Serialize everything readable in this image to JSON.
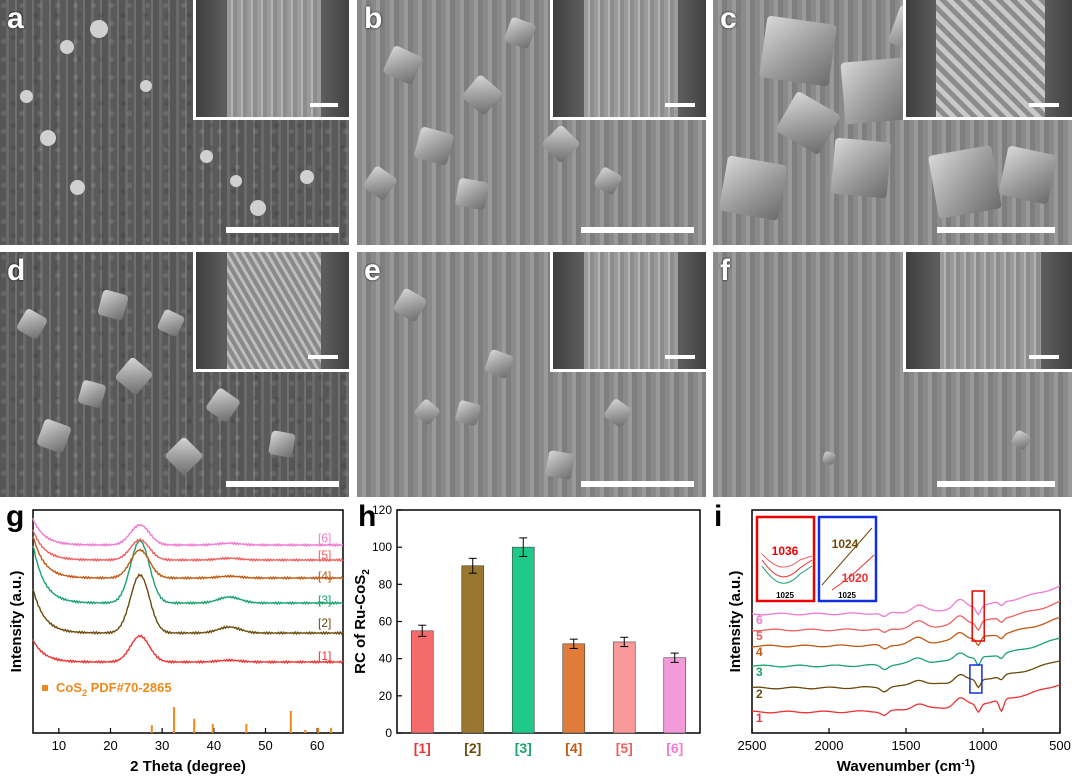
{
  "panels": {
    "a": {
      "label": "a"
    },
    "b": {
      "label": "b"
    },
    "c": {
      "label": "c"
    },
    "d": {
      "label": "d"
    },
    "e": {
      "label": "e"
    },
    "f": {
      "label": "f"
    }
  },
  "plot_labels": {
    "g": "g",
    "h": "h",
    "i": "i"
  },
  "colors": {
    "s1": "#ee3333",
    "s2": "#6b4b0b",
    "s3": "#1aa36e",
    "s4": "#c05a14",
    "s5": "#f06060",
    "s6": "#f07ad0",
    "ref": "#f08a1c",
    "bar1": "#f56a6a",
    "bar2": "#9a7730",
    "bar3": "#1ec98a",
    "bar4": "#e07b3a",
    "bar5": "#f99a9a",
    "bar6": "#f39ad9"
  },
  "chart_data": [
    {
      "type": "line",
      "panel": "g",
      "xlabel": "2 Theta (degree)",
      "ylabel": "Intensity (a.u.)",
      "xlim": [
        5,
        65
      ],
      "xticks": [
        10,
        20,
        30,
        40,
        50,
        60
      ],
      "series_labels": [
        "[1]",
        "[2]",
        "[3]",
        "[4]",
        "[5]",
        "[6]"
      ],
      "reference": {
        "label": "CoS2 PDF#70-2865",
        "label_main": "CoS",
        "label_sub": "2",
        "label_rest": " PDF#70-2865",
        "positions": [
          28.0,
          32.3,
          36.2,
          39.8,
          46.3,
          54.9,
          57.7,
          60.2,
          62.7
        ],
        "heights": [
          0.3,
          1.0,
          0.55,
          0.35,
          0.35,
          0.85,
          0.12,
          0.2,
          0.2
        ]
      }
    },
    {
      "type": "bar",
      "panel": "h",
      "categories": [
        "[1]",
        "[2]",
        "[3]",
        "[4]",
        "[5]",
        "[6]"
      ],
      "values": [
        55,
        90,
        100,
        48,
        49,
        40.5
      ],
      "errors": [
        3,
        4,
        5,
        2.5,
        2.5,
        2.5
      ],
      "ylabel": "RC of Ru-CoS2",
      "ylabel_main": "RC of Ru-CoS",
      "ylabel_sub": "2",
      "ylim": [
        0,
        120
      ],
      "yticks": [
        0,
        20,
        40,
        60,
        80,
        100,
        120
      ]
    },
    {
      "type": "line",
      "panel": "i",
      "xlabel": "Wavenumber (cm-1)",
      "xlabel_main": "Wavenumber (cm",
      "xlabel_sup": "-1",
      "xlabel_end": ")",
      "ylabel": "Intensity (a.u.)",
      "xlim": [
        2500,
        500
      ],
      "xticks": [
        2500,
        2000,
        1500,
        1000,
        500
      ],
      "series_labels": [
        "1",
        "2",
        "3",
        "4",
        "5",
        "6"
      ],
      "inset_left": {
        "peak_label": "1036",
        "tick": "1025"
      },
      "inset_right": {
        "peak_label_top": "1024",
        "peak_label_bottom": "1020",
        "tick": "1025"
      }
    }
  ]
}
